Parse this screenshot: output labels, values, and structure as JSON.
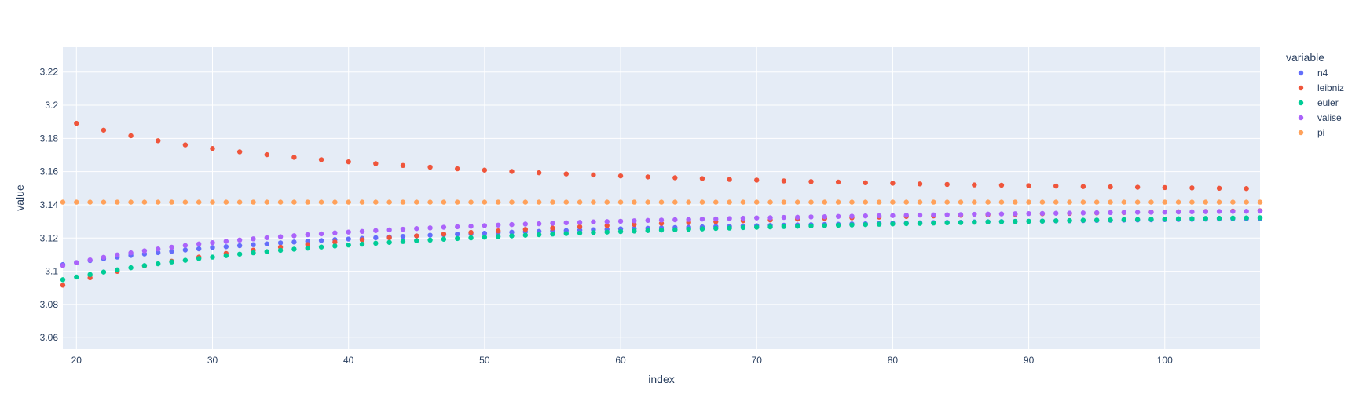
{
  "chart_data": {
    "type": "scatter",
    "title": "",
    "xlabel": "index",
    "ylabel": "value",
    "xlim": [
      19,
      107
    ],
    "ylim": [
      3.053,
      3.235
    ],
    "x_ticks": [
      20,
      30,
      40,
      50,
      60,
      70,
      80,
      90,
      100
    ],
    "y_ticks": [
      3.06,
      3.08,
      3.1,
      3.12,
      3.14,
      3.16,
      3.18,
      3.2,
      3.22
    ],
    "grid": true,
    "legend": {
      "title": "variable",
      "placement": "right"
    },
    "series": [
      {
        "name": "n4",
        "color": "#636efa",
        "x": [
          19,
          20,
          21,
          22,
          23,
          24,
          25,
          26,
          27,
          28,
          29,
          30,
          31,
          32,
          33,
          34,
          35,
          36,
          37,
          38,
          39,
          40,
          41,
          42,
          43,
          44,
          45,
          46,
          47,
          48,
          49,
          50,
          51,
          52,
          53,
          54,
          55,
          56,
          57,
          58,
          59,
          60,
          61,
          62,
          63,
          64,
          65,
          66,
          67,
          68,
          69,
          70,
          71,
          72,
          73,
          74,
          75,
          76,
          77,
          78,
          79,
          80,
          81,
          82,
          83,
          84,
          85,
          86,
          87,
          88,
          89,
          90,
          91,
          92,
          93,
          94,
          95,
          96,
          97,
          98,
          99,
          100,
          101,
          102,
          103,
          104,
          105,
          106,
          107
        ],
        "y": [
          3.104,
          3.1052,
          3.1064,
          3.1075,
          3.1085,
          3.1095,
          3.1104,
          3.1112,
          3.112,
          3.1128,
          3.1135,
          3.1142,
          3.1148,
          3.1154,
          3.116,
          3.1165,
          3.1171,
          3.1176,
          3.1181,
          3.1185,
          3.119,
          3.1194,
          3.1198,
          3.1202,
          3.1206,
          3.121,
          3.1213,
          3.1217,
          3.122,
          3.1223,
          3.1226,
          3.1229,
          3.1232,
          3.1235,
          3.1238,
          3.124,
          3.1243,
          3.1245,
          3.1248,
          3.125,
          3.1252,
          3.1255,
          3.1257,
          3.1259,
          3.1261,
          3.1263,
          3.1265,
          3.1267,
          3.1269,
          3.127,
          3.1272,
          3.1274,
          3.1276,
          3.1277,
          3.1279,
          3.128,
          3.1282,
          3.1283,
          3.1285,
          3.1286,
          3.1288,
          3.1289,
          3.129,
          3.1292,
          3.1293,
          3.1294,
          3.1295,
          3.1297,
          3.1298,
          3.1299,
          3.13,
          3.1301,
          3.1302,
          3.1303,
          3.1304,
          3.1305,
          3.1306,
          3.1307,
          3.1308,
          3.1309,
          3.131,
          3.1311,
          3.1312,
          3.1313,
          3.1314,
          3.1315,
          3.1316,
          3.1316,
          3.1317
        ]
      },
      {
        "name": "leibniz",
        "color": "#ef553b",
        "x": [
          19,
          20,
          21,
          22,
          23,
          24,
          25,
          26,
          27,
          28,
          29,
          30,
          31,
          32,
          33,
          34,
          35,
          36,
          37,
          38,
          39,
          40,
          41,
          42,
          43,
          44,
          45,
          46,
          47,
          48,
          49,
          50,
          51,
          52,
          53,
          54,
          55,
          56,
          57,
          58,
          59,
          60,
          61,
          62,
          63,
          64,
          65,
          66,
          67,
          68,
          69,
          70,
          71,
          72,
          73,
          74,
          75,
          76,
          77,
          78,
          79,
          80,
          81,
          82,
          83,
          84,
          85,
          86,
          87,
          88,
          89,
          90,
          91,
          92,
          93,
          94,
          95,
          96,
          97,
          98,
          99,
          100,
          101,
          102,
          103,
          104,
          105,
          106,
          107
        ],
        "y": [
          3.0916,
          3.1891,
          3.0961,
          3.185,
          3.0999,
          3.1816,
          3.1032,
          3.1786,
          3.106,
          3.1761,
          3.1085,
          3.1739,
          3.1107,
          3.1719,
          3.1127,
          3.1702,
          3.1145,
          3.1686,
          3.1161,
          3.1672,
          3.1176,
          3.1659,
          3.1189,
          3.1648,
          3.1202,
          3.1637,
          3.1213,
          3.1627,
          3.1224,
          3.1617,
          3.1234,
          3.1609,
          3.1243,
          3.1601,
          3.1252,
          3.1593,
          3.126,
          3.1586,
          3.1268,
          3.158,
          3.1275,
          3.1574,
          3.1282,
          3.1568,
          3.1288,
          3.1563,
          3.1294,
          3.1558,
          3.1299,
          3.1553,
          3.1304,
          3.1549,
          3.1309,
          3.1544,
          3.1314,
          3.154,
          3.1318,
          3.1537,
          3.1322,
          3.1533,
          3.1326,
          3.153,
          3.133,
          3.1526,
          3.1333,
          3.1523,
          3.1337,
          3.152,
          3.134,
          3.1518,
          3.1343,
          3.1515,
          3.1346,
          3.1513,
          3.1348,
          3.151,
          3.1351,
          3.1508,
          3.1353,
          3.1506,
          3.1356,
          3.1504,
          3.1358,
          3.1502,
          3.136,
          3.15,
          3.1362,
          3.1498,
          3.1364
        ]
      },
      {
        "name": "euler",
        "color": "#00cc96",
        "x": [
          19,
          20,
          21,
          22,
          23,
          24,
          25,
          26,
          27,
          28,
          29,
          30,
          31,
          32,
          33,
          34,
          35,
          36,
          37,
          38,
          39,
          40,
          41,
          42,
          43,
          44,
          45,
          46,
          47,
          48,
          49,
          50,
          51,
          52,
          53,
          54,
          55,
          56,
          57,
          58,
          59,
          60,
          61,
          62,
          63,
          64,
          65,
          66,
          67,
          68,
          69,
          70,
          71,
          72,
          73,
          74,
          75,
          76,
          77,
          78,
          79,
          80,
          81,
          82,
          83,
          84,
          85,
          86,
          87,
          88,
          89,
          90,
          91,
          92,
          93,
          94,
          95,
          96,
          97,
          98,
          99,
          100,
          101,
          102,
          103,
          104,
          105,
          106,
          107
        ],
        "y": [
          3.0949,
          3.0965,
          3.098,
          3.0995,
          3.1008,
          3.1021,
          3.1034,
          3.1045,
          3.1056,
          3.1066,
          3.1076,
          3.1085,
          3.1094,
          3.1103,
          3.1111,
          3.1118,
          3.1126,
          3.1133,
          3.1139,
          3.1146,
          3.1152,
          3.1158,
          3.1163,
          3.1169,
          3.1174,
          3.1179,
          3.1184,
          3.1188,
          3.1193,
          3.1197,
          3.1201,
          3.1205,
          3.1209,
          3.1213,
          3.1217,
          3.122,
          3.1224,
          3.1227,
          3.123,
          3.1233,
          3.1236,
          3.1239,
          3.1242,
          3.1245,
          3.1248,
          3.125,
          3.1253,
          3.1255,
          3.1258,
          3.126,
          3.1263,
          3.1265,
          3.1267,
          3.1269,
          3.1271,
          3.1273,
          3.1275,
          3.1277,
          3.1279,
          3.1281,
          3.1283,
          3.1285,
          3.1287,
          3.1288,
          3.129,
          3.1292,
          3.1293,
          3.1295,
          3.1297,
          3.1298,
          3.13,
          3.1301,
          3.1302,
          3.1304,
          3.1305,
          3.1307,
          3.1308,
          3.1309,
          3.1311,
          3.1312,
          3.1313,
          3.1314,
          3.1316,
          3.1317,
          3.1318,
          3.1319,
          3.132,
          3.1321,
          3.1322
        ]
      },
      {
        "name": "valise",
        "color": "#ab63fa",
        "x": [
          19,
          20,
          21,
          22,
          23,
          24,
          25,
          26,
          27,
          28,
          29,
          30,
          31,
          32,
          33,
          34,
          35,
          36,
          37,
          38,
          39,
          40,
          41,
          42,
          43,
          44,
          45,
          46,
          47,
          48,
          49,
          50,
          51,
          52,
          53,
          54,
          55,
          56,
          57,
          58,
          59,
          60,
          61,
          62,
          63,
          64,
          65,
          66,
          67,
          68,
          69,
          70,
          71,
          72,
          73,
          74,
          75,
          76,
          77,
          78,
          79,
          80,
          81,
          82,
          83,
          84,
          85,
          86,
          87,
          88,
          89,
          90,
          91,
          92,
          93,
          94,
          95,
          96,
          97,
          98,
          99,
          100,
          101,
          102,
          103,
          104,
          105,
          106,
          107
        ],
        "y": [
          3.1034,
          3.1052,
          3.1068,
          3.1084,
          3.1098,
          3.1111,
          3.1123,
          3.1134,
          3.1145,
          3.1155,
          3.1164,
          3.1172,
          3.118,
          3.1188,
          3.1195,
          3.1202,
          3.1208,
          3.1214,
          3.122,
          3.1225,
          3.1231,
          3.1236,
          3.124,
          3.1245,
          3.1249,
          3.1253,
          3.1257,
          3.1261,
          3.1265,
          3.1268,
          3.1271,
          3.1275,
          3.1278,
          3.1281,
          3.1284,
          3.1286,
          3.1289,
          3.1292,
          3.1294,
          3.1297,
          3.1299,
          3.1301,
          3.1304,
          3.1306,
          3.1308,
          3.131,
          3.1312,
          3.1314,
          3.1315,
          3.1317,
          3.1319,
          3.1321,
          3.1322,
          3.1324,
          3.1325,
          3.1327,
          3.1328,
          3.133,
          3.1331,
          3.1333,
          3.1334,
          3.1335,
          3.1337,
          3.1338,
          3.1339,
          3.134,
          3.1341,
          3.1343,
          3.1344,
          3.1345,
          3.1346,
          3.1347,
          3.1348,
          3.1349,
          3.135,
          3.1351,
          3.1352,
          3.1353,
          3.1354,
          3.1355,
          3.1355,
          3.1356,
          3.1357,
          3.1358,
          3.1359,
          3.136,
          3.136,
          3.1361,
          3.1362
        ]
      },
      {
        "name": "pi",
        "color": "#ffa15a",
        "x": [
          19,
          20,
          21,
          22,
          23,
          24,
          25,
          26,
          27,
          28,
          29,
          30,
          31,
          32,
          33,
          34,
          35,
          36,
          37,
          38,
          39,
          40,
          41,
          42,
          43,
          44,
          45,
          46,
          47,
          48,
          49,
          50,
          51,
          52,
          53,
          54,
          55,
          56,
          57,
          58,
          59,
          60,
          61,
          62,
          63,
          64,
          65,
          66,
          67,
          68,
          69,
          70,
          71,
          72,
          73,
          74,
          75,
          76,
          77,
          78,
          79,
          80,
          81,
          82,
          83,
          84,
          85,
          86,
          87,
          88,
          89,
          90,
          91,
          92,
          93,
          94,
          95,
          96,
          97,
          98,
          99,
          100,
          101,
          102,
          103,
          104,
          105,
          106,
          107
        ],
        "y": [
          3.14159,
          3.14159,
          3.14159,
          3.14159,
          3.14159,
          3.14159,
          3.14159,
          3.14159,
          3.14159,
          3.14159,
          3.14159,
          3.14159,
          3.14159,
          3.14159,
          3.14159,
          3.14159,
          3.14159,
          3.14159,
          3.14159,
          3.14159,
          3.14159,
          3.14159,
          3.14159,
          3.14159,
          3.14159,
          3.14159,
          3.14159,
          3.14159,
          3.14159,
          3.14159,
          3.14159,
          3.14159,
          3.14159,
          3.14159,
          3.14159,
          3.14159,
          3.14159,
          3.14159,
          3.14159,
          3.14159,
          3.14159,
          3.14159,
          3.14159,
          3.14159,
          3.14159,
          3.14159,
          3.14159,
          3.14159,
          3.14159,
          3.14159,
          3.14159,
          3.14159,
          3.14159,
          3.14159,
          3.14159,
          3.14159,
          3.14159,
          3.14159,
          3.14159,
          3.14159,
          3.14159,
          3.14159,
          3.14159,
          3.14159,
          3.14159,
          3.14159,
          3.14159,
          3.14159,
          3.14159,
          3.14159,
          3.14159,
          3.14159,
          3.14159,
          3.14159,
          3.14159,
          3.14159,
          3.14159,
          3.14159,
          3.14159,
          3.14159,
          3.14159,
          3.14159,
          3.14159,
          3.14159,
          3.14159,
          3.14159,
          3.14159,
          3.14159,
          3.14159
        ]
      }
    ]
  }
}
